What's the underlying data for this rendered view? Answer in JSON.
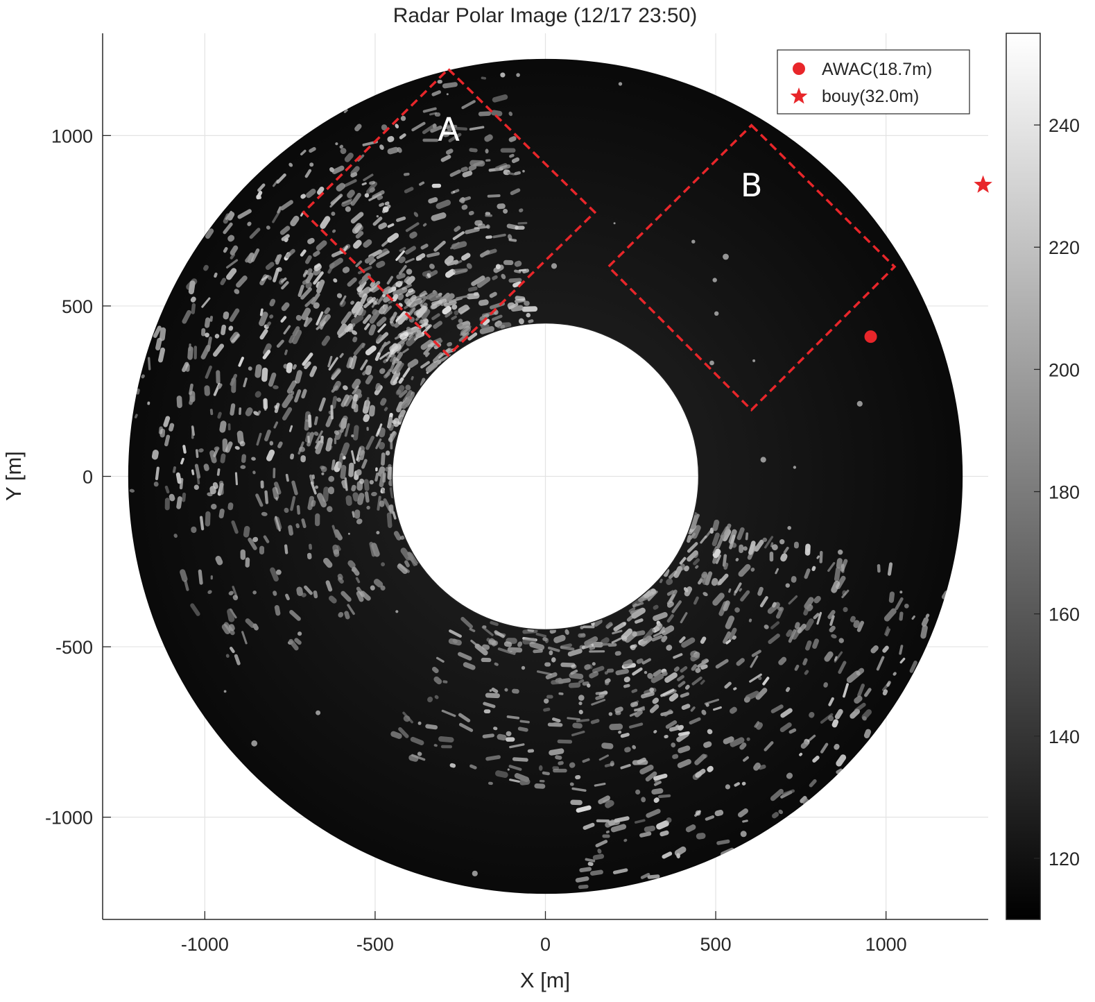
{
  "chart_data": {
    "type": "heatmap",
    "title": "Radar Polar Image (12/17  23:50)",
    "xlabel": "X [m]",
    "ylabel": "Y [m]",
    "xlim": [
      -1300,
      1300
    ],
    "ylim": [
      -1300,
      1300
    ],
    "x_ticks": [
      -1000,
      -500,
      0,
      500,
      1000
    ],
    "y_ticks": [
      -1000,
      -500,
      0,
      500,
      1000
    ],
    "x_tick_labels": [
      "-1000",
      "-500",
      "0",
      "500",
      "1000"
    ],
    "y_tick_labels": [
      "-1000",
      "-500",
      "0",
      "500",
      "1000"
    ],
    "grid": true,
    "radar": {
      "inner_radius_m": 450,
      "outer_radius_m": 1225
    },
    "colorbar": {
      "colormap": "gray",
      "range": [
        110,
        255
      ],
      "ticks": [
        120,
        140,
        160,
        180,
        200,
        220,
        240
      ],
      "tick_labels": [
        "120",
        "140",
        "160",
        "180",
        "200",
        "220",
        "240"
      ]
    },
    "regions": [
      {
        "label": "A",
        "corners": [
          [
            -285,
            1195
          ],
          [
            145,
            775
          ],
          [
            -285,
            355
          ],
          [
            -710,
            775
          ]
        ],
        "color": "#e8262a"
      },
      {
        "label": "B",
        "corners": [
          [
            605,
            1030
          ],
          [
            1025,
            615
          ],
          [
            605,
            195
          ],
          [
            185,
            615
          ]
        ],
        "color": "#e8262a"
      }
    ],
    "series": [
      {
        "name": "AWAC(18.7m)",
        "marker": "circle",
        "color": "#e8262a",
        "x": [
          955
        ],
        "y": [
          410
        ]
      },
      {
        "name": "bouy(32.0m)",
        "marker": "star",
        "color": "#e8262a",
        "x": [
          1285
        ],
        "y": [
          855
        ]
      }
    ],
    "legend": {
      "position": "top-right"
    }
  }
}
